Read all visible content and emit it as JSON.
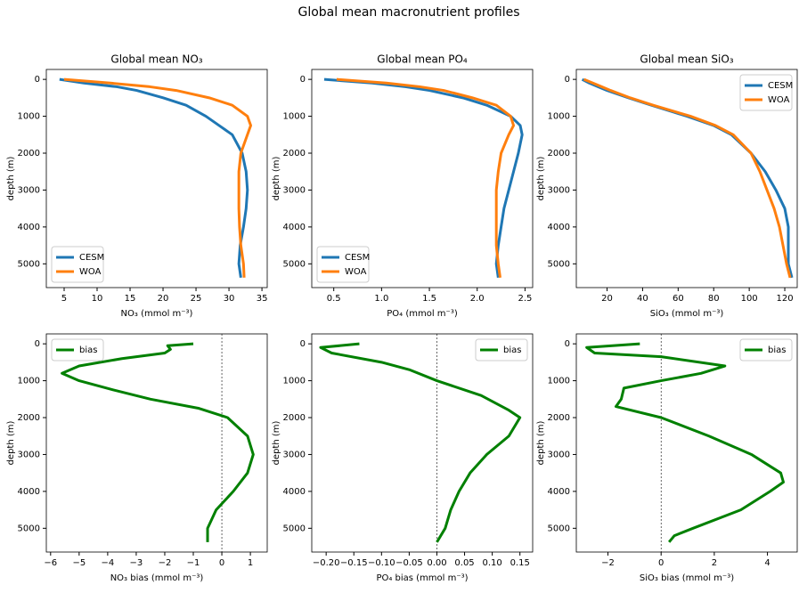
{
  "title": "Global mean macronutrient profiles",
  "chart_data": [
    {
      "type": "line",
      "title": "Global mean NO₃",
      "xlabel": "NO₃ (mmol m⁻³)",
      "ylabel": "depth (m)",
      "xlim": [
        2.3,
        35.8
      ],
      "xticks": [
        5,
        10,
        15,
        20,
        25,
        30,
        35
      ],
      "ylim": [
        5644,
        -269
      ],
      "yticks": [
        0,
        1000,
        2000,
        3000,
        4000,
        5000
      ],
      "legend": "lower left",
      "y": [
        0,
        100,
        200,
        300,
        500,
        700,
        1000,
        1250,
        1500,
        2000,
        2500,
        3000,
        3500,
        4000,
        4500,
        5000,
        5375
      ],
      "series": [
        {
          "name": "CESM",
          "color": "#1f77b4",
          "values": [
            4.3,
            8,
            13,
            16,
            20,
            23.5,
            26.5,
            28.5,
            30.5,
            32,
            32.6,
            32.8,
            32.6,
            32.2,
            31.7,
            31.5,
            31.8
          ]
        },
        {
          "name": "WOA",
          "color": "#ff7f0e",
          "values": [
            5,
            12,
            18,
            22,
            27,
            30.5,
            32.8,
            33.3,
            32.8,
            31.8,
            31.5,
            31.5,
            31.5,
            31.6,
            31.8,
            32.2,
            32.3
          ]
        }
      ]
    },
    {
      "type": "line",
      "title": "Global mean PO₄",
      "xlabel": "PO₄ (mmol m⁻³)",
      "ylabel": "depth (m)",
      "xlim": [
        0.27,
        2.58
      ],
      "xticks": [
        0.5,
        {
          "value": 1,
          "label": "1.0"
        },
        1.5,
        {
          "value": 2,
          "label": "2.0"
        },
        2.5
      ],
      "ylim": [
        5644,
        -269
      ],
      "yticks": [
        0,
        1000,
        2000,
        3000,
        4000,
        5000
      ],
      "legend": "lower left",
      "y": [
        0,
        100,
        200,
        300,
        500,
        700,
        1000,
        1250,
        1500,
        2000,
        2500,
        3000,
        3500,
        4000,
        4500,
        5000,
        5375
      ],
      "series": [
        {
          "name": "CESM",
          "color": "#1f77b4",
          "values": [
            0.4,
            0.9,
            1.25,
            1.5,
            1.85,
            2.1,
            2.35,
            2.45,
            2.47,
            2.43,
            2.38,
            2.33,
            2.28,
            2.25,
            2.22,
            2.2,
            2.22
          ]
        },
        {
          "name": "WOA",
          "color": "#ff7f0e",
          "values": [
            0.53,
            1.05,
            1.4,
            1.65,
            1.95,
            2.2,
            2.35,
            2.38,
            2.33,
            2.25,
            2.22,
            2.2,
            2.2,
            2.2,
            2.2,
            2.22,
            2.24
          ]
        }
      ]
    },
    {
      "type": "line",
      "title": "Global mean SiO₃",
      "xlabel": "SiO₃ (mmol m⁻³)",
      "ylabel": "depth (m)",
      "xlim": [
        2.7,
        127
      ],
      "xticks": [
        20,
        40,
        60,
        80,
        100,
        120
      ],
      "ylim": [
        5644,
        -269
      ],
      "yticks": [
        0,
        1000,
        2000,
        3000,
        4000,
        5000
      ],
      "legend": "upper right",
      "y": [
        0,
        100,
        200,
        300,
        500,
        700,
        1000,
        1250,
        1500,
        2000,
        2500,
        3000,
        3500,
        4000,
        4500,
        5000,
        5375
      ],
      "series": [
        {
          "name": "CESM",
          "color": "#1f77b4",
          "values": [
            6,
            10,
            15,
            20,
            32,
            45,
            65,
            80,
            90,
            101,
            109,
            115,
            120,
            122,
            122,
            122,
            124
          ]
        },
        {
          "name": "WOA",
          "color": "#ff7f0e",
          "values": [
            7,
            12,
            17,
            22,
            33,
            46,
            67,
            81,
            91,
            101,
            106,
            110,
            114,
            117,
            119,
            121,
            123
          ]
        }
      ]
    },
    {
      "type": "line",
      "xlabel": "NO₃ bias (mmol m⁻³)",
      "ylabel": "depth (m)",
      "xlim": [
        -6.15,
        1.59
      ],
      "xticks": [
        {
          "value": -6,
          "label": "−6"
        },
        {
          "value": -5,
          "label": "−5"
        },
        {
          "value": -4,
          "label": "−4"
        },
        {
          "value": -3,
          "label": "−3"
        },
        {
          "value": -2,
          "label": "−2"
        },
        {
          "value": -1,
          "label": "−1"
        },
        0,
        1
      ],
      "ylim": [
        5644,
        -269
      ],
      "yticks": [
        0,
        1000,
        2000,
        3000,
        4000,
        5000
      ],
      "legend": "upper left",
      "reference_line": 0,
      "y": [
        0,
        50,
        150,
        250,
        400,
        600,
        800,
        1000,
        1250,
        1500,
        1750,
        2000,
        2500,
        3000,
        3500,
        4000,
        4500,
        5000,
        5375
      ],
      "series": [
        {
          "name": "bias",
          "color": "#008000",
          "values": [
            -1,
            -1.9,
            -1.8,
            -2,
            -3.5,
            -5,
            -5.6,
            -5,
            -3.8,
            -2.5,
            -0.8,
            0.2,
            0.9,
            1.1,
            0.9,
            0.4,
            -0.2,
            -0.5,
            -0.5
          ]
        }
      ]
    },
    {
      "type": "line",
      "xlabel": "PO₄ bias (mmol m⁻³)",
      "ylabel": "depth (m)",
      "xlim": [
        -0.226,
        0.173
      ],
      "xticks": [
        {
          "value": -0.2,
          "label": "−0.20"
        },
        {
          "value": -0.15,
          "label": "−0.15"
        },
        {
          "value": -0.1,
          "label": "−0.10"
        },
        {
          "value": -0.05,
          "label": "−0.05"
        },
        {
          "value": 0,
          "label": "0.00"
        },
        0.05,
        {
          "value": 0.1,
          "label": "0.10"
        },
        0.15
      ],
      "ylim": [
        5644,
        -269
      ],
      "yticks": [
        0,
        1000,
        2000,
        3000,
        4000,
        5000
      ],
      "legend": "upper right",
      "reference_line": 0,
      "y": [
        0,
        100,
        250,
        500,
        700,
        1000,
        1400,
        1800,
        2000,
        2500,
        3000,
        3500,
        4000,
        4500,
        5000,
        5375
      ],
      "series": [
        {
          "name": "bias",
          "color": "#008000",
          "values": [
            -0.14,
            -0.21,
            -0.19,
            -0.1,
            -0.05,
            0,
            0.08,
            0.13,
            0.15,
            0.13,
            0.09,
            0.06,
            0.04,
            0.025,
            0.015,
            0
          ]
        }
      ]
    },
    {
      "type": "line",
      "xlabel": "SiO₃ bias (mmol m⁻³)",
      "ylabel": "depth (m)",
      "xlim": [
        -3.19,
        5.12
      ],
      "xticks": [
        {
          "value": -2,
          "label": "−2"
        },
        0,
        2,
        4
      ],
      "ylim": [
        5644,
        -269
      ],
      "yticks": [
        0,
        1000,
        2000,
        3000,
        4000,
        5000
      ],
      "legend": "upper right",
      "reference_line": 0,
      "y": [
        0,
        100,
        250,
        350,
        600,
        800,
        1000,
        1200,
        1500,
        1700,
        2000,
        2500,
        3000,
        3500,
        3750,
        4000,
        4500,
        5000,
        5200,
        5375
      ],
      "series": [
        {
          "name": "bias",
          "color": "#008000",
          "values": [
            -0.8,
            -2.8,
            -2.5,
            0,
            2.4,
            1.5,
            0,
            -1.4,
            -1.5,
            -1.7,
            0,
            1.8,
            3.4,
            4.5,
            4.6,
            4.1,
            3,
            1.2,
            0.5,
            0.3
          ]
        }
      ]
    }
  ]
}
